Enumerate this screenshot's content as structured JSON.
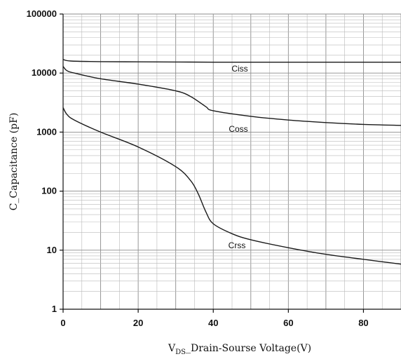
{
  "chart_data": {
    "type": "line",
    "xlabel_prefix": "V",
    "xlabel_sub": "DS",
    "xlabel_rest": "_Drain-Sourse Voltage(V)",
    "ylabel": "C_Capacitance (pF)",
    "xlim": [
      0,
      90
    ],
    "ylim": [
      1,
      100000
    ],
    "y_scale": "log",
    "grid": true,
    "x_ticks": [
      0,
      20,
      40,
      60,
      80
    ],
    "x_tick_labels": [
      "0",
      "20",
      "40",
      "60",
      "80"
    ],
    "y_ticks": [
      1,
      10,
      100,
      1000,
      10000,
      100000
    ],
    "y_tick_labels": [
      "1",
      "10",
      "100",
      "1000",
      "10000",
      "100000"
    ],
    "series": [
      {
        "name": "Ciss",
        "x": [
          0,
          2,
          10,
          20,
          30,
          40,
          50,
          60,
          70,
          80,
          90
        ],
        "y": [
          17000,
          16000,
          15600,
          15500,
          15400,
          15300,
          15300,
          15300,
          15300,
          15300,
          15300
        ]
      },
      {
        "name": "Coss",
        "x": [
          0,
          1,
          3,
          10,
          20,
          30,
          34,
          38,
          40,
          50,
          60,
          70,
          80,
          90
        ],
        "y": [
          13000,
          11000,
          10000,
          8000,
          6500,
          5000,
          4000,
          2700,
          2300,
          1850,
          1600,
          1450,
          1350,
          1300
        ]
      },
      {
        "name": "Crss",
        "x": [
          0,
          1,
          3,
          10,
          20,
          30,
          34,
          36,
          38,
          40,
          45,
          50,
          60,
          70,
          80,
          90
        ],
        "y": [
          2600,
          2000,
          1600,
          1000,
          560,
          260,
          150,
          90,
          45,
          28,
          19,
          15,
          11,
          8.5,
          7,
          5.8
        ]
      }
    ]
  }
}
